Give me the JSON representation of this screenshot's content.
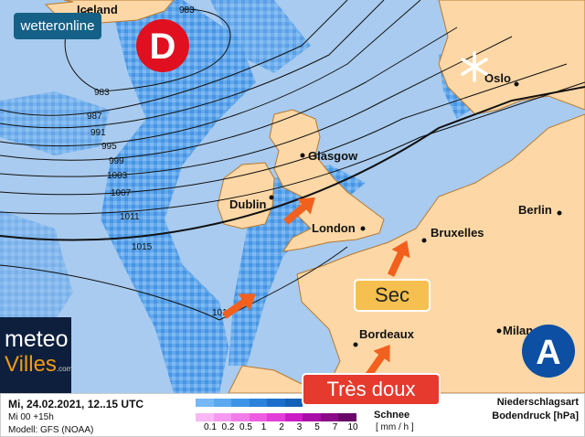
{
  "brand": {
    "wetteronline": "wetteronline",
    "meteo": "meteo",
    "villes": "Villes",
    "villes_suffix": ".com"
  },
  "pressure_centers": {
    "low": "D",
    "high": "A"
  },
  "places": [
    "Iceland",
    "Oslo",
    "Glasgow",
    "Dublin",
    "London",
    "Bruxelles",
    "Berlin",
    "Bordeaux",
    "Milan"
  ],
  "isobars": [
    "983",
    "983",
    "987",
    "991",
    "995",
    "999",
    "1003",
    "1007",
    "1011",
    "1015",
    "101"
  ],
  "annotations": {
    "dry": "Sec",
    "mild": "Très doux"
  },
  "colors": {
    "sea": "#a9cbef",
    "land": "#fdd8a6",
    "coast": "#b8782e",
    "arrow": "#f2601e",
    "low": "#e01020",
    "high": "#0d4fa3",
    "dry_box": "#f5c04f",
    "mild_box": "#e53a2d"
  },
  "legend": {
    "date": "Mi, 24.02.2021, 12..15 UTC",
    "run": "Mi 00 +15h",
    "model": "Modell: GFS (NOAA)",
    "snow": "Schnee",
    "unit": "[ mm / h ]",
    "type": "Niederschlagsart",
    "pressure": "Bodendruck [hPa]",
    "ticks": [
      "0.1",
      "0.2",
      "0.5",
      "1",
      "2",
      "3",
      "5",
      "7",
      "10"
    ],
    "rain_colors": [
      "#74b9f5",
      "#5aa8f0",
      "#3d95e8",
      "#2a82dc",
      "#1c70cc",
      "#1560b8"
    ],
    "snow_colors": [
      "#f9b8f4",
      "#f59af0",
      "#f27de9",
      "#ee5ce2",
      "#e23ed8",
      "#cc1cc6",
      "#aa0ea8",
      "#8a0a88",
      "#6a0668"
    ]
  }
}
